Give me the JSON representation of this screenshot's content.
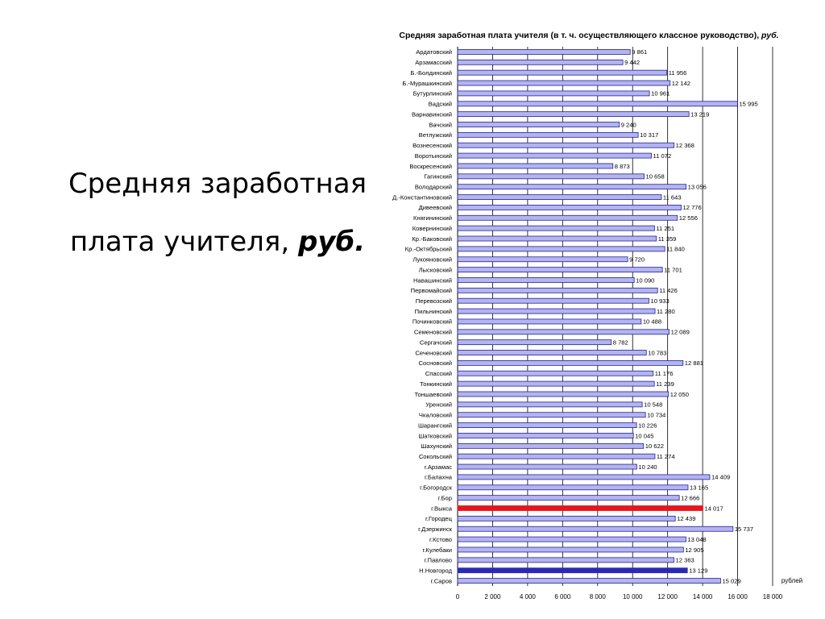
{
  "slide": {
    "title_line1": "Средняя заработная",
    "title_line2_plain": "плата учителя, ",
    "title_line2_emph": "руб."
  },
  "colors": {
    "bar": "#b4b4ee",
    "bar_stroke": "#22229c",
    "highlight_red": "#e8141c",
    "highlight_blue": "#2a2ab8",
    "grid": "#000000"
  },
  "chart_data": {
    "type": "bar",
    "orientation": "horizontal",
    "title": "Средняя заработная плата учителя (в т. ч. осуществляющего классное руководство), ",
    "title_unit": "руб.",
    "xlabel": "рублей",
    "xlim": [
      0,
      18000
    ],
    "xticks": [
      0,
      2000,
      4000,
      6000,
      8000,
      10000,
      12000,
      14000,
      16000,
      18000
    ],
    "xtick_labels": [
      "0",
      "2 000",
      "4 000",
      "6 000",
      "8 000",
      "10 000",
      "12 000",
      "14 000",
      "16 000",
      "18 000"
    ],
    "grid": "vertical",
    "categories": [
      "Ардатовский",
      "Арзамасский",
      "Б.-Болдинский",
      "Б.-Мурашкинский",
      "Бутурлинский",
      "Вадский",
      "Варнавинский",
      "Вачский",
      "Ветлужский",
      "Вознесенский",
      "Воротынский",
      "Воскресенский",
      "Гагинский",
      "Володарский",
      "Д.-Константиновский",
      "Дивеевский",
      "Княгининский",
      "Ковернинский",
      "Кр.-Баковский",
      "Кр.-Октябрьский",
      "Лукояновский",
      "Лысковский",
      "Навашинский",
      "Первомайский",
      "Перевозский",
      "Пильнинский",
      "Починковский",
      "Семеновский",
      "Сергачский",
      "Сеченовский",
      "Сосновский",
      "Спасский",
      "Тонкинский",
      "Тоншаевский",
      "Уренский",
      "Чкаловский",
      "Шарангский",
      "Шатковский",
      "Шахунский",
      "Сокольский",
      "г.Арзамас",
      "г.Балахна",
      "г.Богородск",
      "г.Бор",
      "г.Выкса",
      "г.Городец",
      "г.Дзержинск",
      "г.Кстово",
      "г.Кулебаки",
      "г.Павлово",
      "Н.Новгород",
      "г.Саров"
    ],
    "values": [
      9861,
      9442,
      11956,
      12142,
      10961,
      15995,
      13219,
      9240,
      10317,
      12368,
      11072,
      8873,
      10658,
      13056,
      11643,
      12776,
      12556,
      11251,
      11359,
      11840,
      9720,
      11701,
      10090,
      11426,
      10933,
      11280,
      10488,
      12089,
      8782,
      10783,
      12881,
      11176,
      11239,
      12050,
      10548,
      10734,
      10226,
      10045,
      10622,
      11274,
      10240,
      14409,
      13165,
      12666,
      14017,
      12439,
      15737,
      13048,
      12905,
      12363,
      13129,
      15029
    ],
    "value_labels": [
      "9 861",
      "9 442",
      "11 956",
      "12 142",
      "10 961",
      "15 995",
      "13 219",
      "9 240",
      "10 317",
      "12 368",
      "11 072",
      "8 873",
      "10 658",
      "13 056",
      "11 643",
      "12 776",
      "12 556",
      "11 251",
      "11 359",
      "11 840",
      "9 720",
      "11 701",
      "10 090",
      "11 426",
      "10 933",
      "11 280",
      "10 488",
      "12 089",
      "8 782",
      "10 783",
      "12 881",
      "11 176",
      "11 239",
      "12 050",
      "10 548",
      "10 734",
      "10 226",
      "10 045",
      "10 622",
      "11 274",
      "10 240",
      "14 409",
      "13 165",
      "12 666",
      "14 017",
      "12 439",
      "15 737",
      "13 048",
      "12 905",
      "12 363",
      "13 129",
      "15 029"
    ],
    "highlights": {
      "г.Выкса": "highlight_red",
      "Н.Новгород": "highlight_blue"
    }
  }
}
